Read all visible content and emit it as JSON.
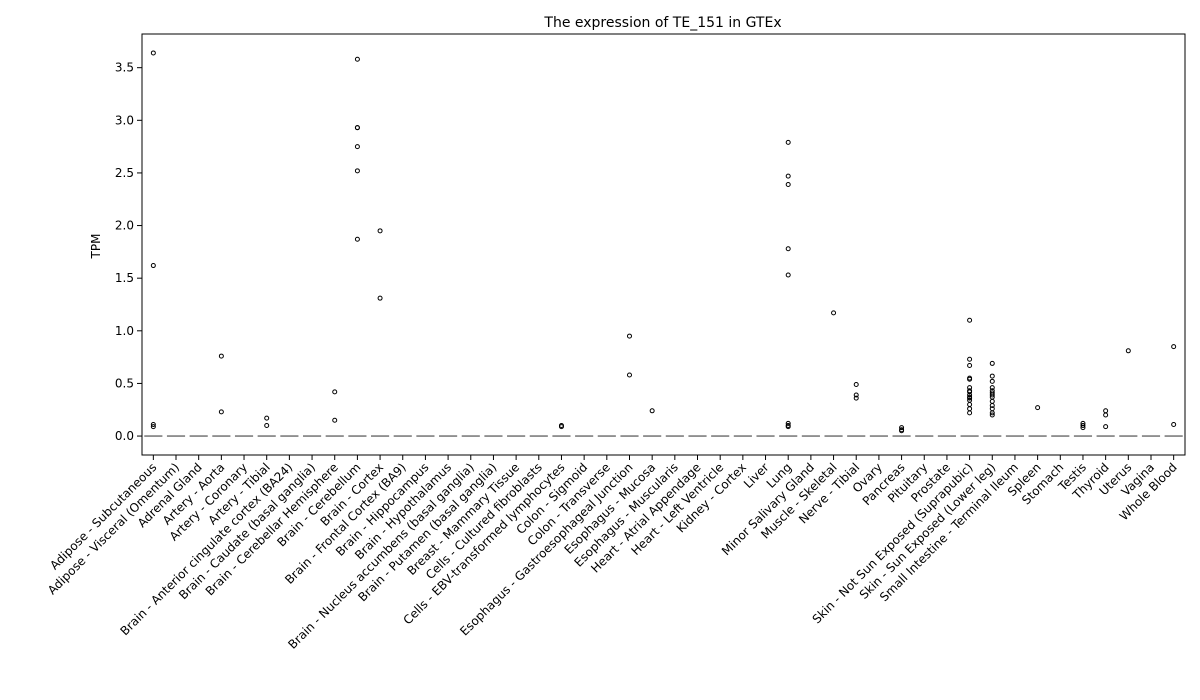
{
  "chart_data": {
    "type": "box",
    "title": "The expression of TE_151 in GTEx",
    "xlabel": "",
    "ylabel": "TPM",
    "ylim": [
      -0.18,
      3.82
    ],
    "yticks": [
      "0.0",
      "0.5",
      "1.0",
      "1.5",
      "2.0",
      "2.5",
      "3.0",
      "3.5"
    ],
    "grid": false,
    "median_color": "#7f7f7f",
    "marker_color": "#000000",
    "categories": [
      "Adipose - Subcutaneous",
      "Adipose - Visceral (Omentum)",
      "Adrenal Gland",
      "Artery - Aorta",
      "Artery - Coronary",
      "Artery - Tibial",
      "Brain - Anterior cingulate cortex (BA24)",
      "Brain - Caudate (basal ganglia)",
      "Brain - Cerebellar Hemisphere",
      "Brain - Cerebellum",
      "Brain - Cortex",
      "Brain - Frontal Cortex (BA9)",
      "Brain - Hippocampus",
      "Brain - Hypothalamus",
      "Brain - Nucleus accumbens (basal ganglia)",
      "Brain - Putamen (basal ganglia)",
      "Breast - Mammary Tissue",
      "Cells - Cultured fibroblasts",
      "Cells - EBV-transformed lymphocytes",
      "Colon - Sigmoid",
      "Colon - Transverse",
      "Esophagus - Gastroesophageal Junction",
      "Esophagus - Mucosa",
      "Esophagus - Muscularis",
      "Heart - Atrial Appendage",
      "Heart - Left Ventricle",
      "Kidney - Cortex",
      "Liver",
      "Lung",
      "Minor Salivary Gland",
      "Muscle - Skeletal",
      "Nerve - Tibial",
      "Ovary",
      "Pancreas",
      "Pituitary",
      "Prostate",
      "Skin - Not Sun Exposed (Suprapubic)",
      "Skin - Sun Exposed (Lower leg)",
      "Small Intestine - Terminal Ileum",
      "Spleen",
      "Stomach",
      "Testis",
      "Thyroid",
      "Uterus",
      "Vagina",
      "Whole Blood"
    ],
    "medians": [
      0,
      0,
      0,
      0,
      0,
      0,
      0,
      0,
      0,
      0,
      0,
      0,
      0,
      0,
      0,
      0,
      0,
      0,
      0,
      0,
      0,
      0,
      0,
      0,
      0,
      0,
      0,
      0,
      0,
      0,
      0,
      0,
      0,
      0,
      0,
      0,
      0,
      0,
      0,
      0,
      0,
      0,
      0,
      0,
      0,
      0
    ],
    "outliers": [
      [
        3.64,
        1.62,
        0.11,
        0.09
      ],
      [],
      [],
      [
        0.76,
        0.23
      ],
      [],
      [
        0.17,
        0.1
      ],
      [],
      [],
      [
        0.42,
        0.15
      ],
      [
        3.58,
        2.93,
        2.93,
        2.75,
        2.52,
        1.87
      ],
      [
        1.95,
        1.31
      ],
      [],
      [],
      [],
      [],
      [],
      [],
      [],
      [
        0.1,
        0.09
      ],
      [],
      [],
      [
        0.95,
        0.58
      ],
      [
        0.24
      ],
      [],
      [],
      [],
      [],
      [],
      [
        2.79,
        2.47,
        2.39,
        1.78,
        1.53,
        0.12,
        0.1,
        0.09
      ],
      [],
      [
        1.17
      ],
      [
        0.49,
        0.39,
        0.36
      ],
      [],
      [
        0.08,
        0.06,
        0.05
      ],
      [],
      [],
      [
        1.1,
        0.73,
        0.67,
        0.55,
        0.54,
        0.46,
        0.43,
        0.42,
        0.39,
        0.37,
        0.36,
        0.34,
        0.3,
        0.26,
        0.22
      ],
      [
        0.69,
        0.57,
        0.52,
        0.46,
        0.43,
        0.41,
        0.39,
        0.37,
        0.33,
        0.29,
        0.26,
        0.22,
        0.2
      ],
      [],
      [
        0.27
      ],
      [],
      [
        0.12,
        0.1,
        0.08
      ],
      [
        0.24,
        0.2,
        0.09
      ],
      [
        0.81
      ],
      [],
      [
        0.85,
        0.11
      ]
    ]
  }
}
